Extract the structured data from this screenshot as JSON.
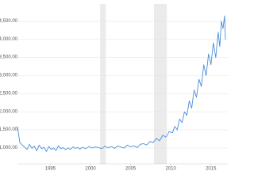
{
  "chart_data": {
    "type": "line",
    "x": [
      1990.9,
      1991.2,
      1991.5,
      1991.8,
      1992.1,
      1992.4,
      1992.7,
      1993.0,
      1993.3,
      1993.6,
      1993.9,
      1994.2,
      1994.5,
      1994.8,
      1995.1,
      1995.4,
      1995.7,
      1996.0,
      1996.3,
      1996.6,
      1996.9,
      1997.2,
      1997.5,
      1997.8,
      1998.1,
      1998.4,
      1998.7,
      1999.0,
      1999.4,
      1999.8,
      2000.2,
      2000.6,
      2001.0,
      2001.4,
      2001.8,
      2002.2,
      2002.6,
      2003.0,
      2003.4,
      2003.8,
      2004.2,
      2004.6,
      2005.0,
      2005.4,
      2005.8,
      2006.2,
      2006.6,
      2007.0,
      2007.4,
      2007.8,
      2008.2,
      2008.6,
      2009.0,
      2009.4,
      2009.8,
      2010.2,
      2010.5,
      2010.8,
      2011.1,
      2011.4,
      2011.7,
      2012.0,
      2012.3,
      2012.6,
      2012.9,
      2013.2,
      2013.5,
      2013.8,
      2014.1,
      2014.4,
      2014.7,
      2015.0,
      2015.3,
      2015.6,
      2015.9,
      2016.1,
      2016.3,
      2016.5,
      2016.7,
      2016.8
    ],
    "series": [
      {
        "color": "#4a90d9",
        "values": [
          1590,
          1150,
          1080,
          1020,
          960,
          1100,
          990,
          1050,
          920,
          1080,
          980,
          1020,
          900,
          1040,
          960,
          1000,
          930,
          1060,
          980,
          1010,
          950,
          1000,
          960,
          1030,
          990,
          1010,
          970,
          1020,
          980,
          1040,
          1000,
          1030,
          1010,
          980,
          1050,
          1000,
          1040,
          990,
          1060,
          1020,
          1000,
          1080,
          1030,
          1060,
          1010,
          1100,
          1120,
          1080,
          1180,
          1150,
          1260,
          1200,
          1350,
          1300,
          1450,
          1420,
          1600,
          1500,
          1800,
          1700,
          2000,
          1900,
          2300,
          2100,
          2600,
          2400,
          2900,
          2700,
          3300,
          3000,
          3600,
          3300,
          3900,
          3500,
          4200,
          3800,
          4500,
          4300,
          4650,
          4000
        ]
      }
    ],
    "shaded_ranges": [
      [
        2001.2,
        2001.9
      ],
      [
        2007.9,
        2009.5
      ]
    ],
    "xlim": [
      1990.9,
      2017.1
    ],
    "ylim": [
      560,
      4980
    ],
    "xticks": [
      1995,
      2000,
      2005,
      2010,
      2015
    ],
    "yticks": [
      {
        "value": 1000,
        "label": "1,000.00"
      },
      {
        "value": 1500,
        "label": "1,500.00"
      },
      {
        "value": 2000,
        "label": "2,000.00"
      },
      {
        "value": 2500,
        "label": "2,500.00"
      },
      {
        "value": 3000,
        "label": "3,000.00"
      },
      {
        "value": 3500,
        "label": "3,500.00"
      },
      {
        "value": 4000,
        "label": "4,000.00"
      },
      {
        "value": 4500,
        "label": "4,500.00"
      }
    ],
    "grid": true
  }
}
